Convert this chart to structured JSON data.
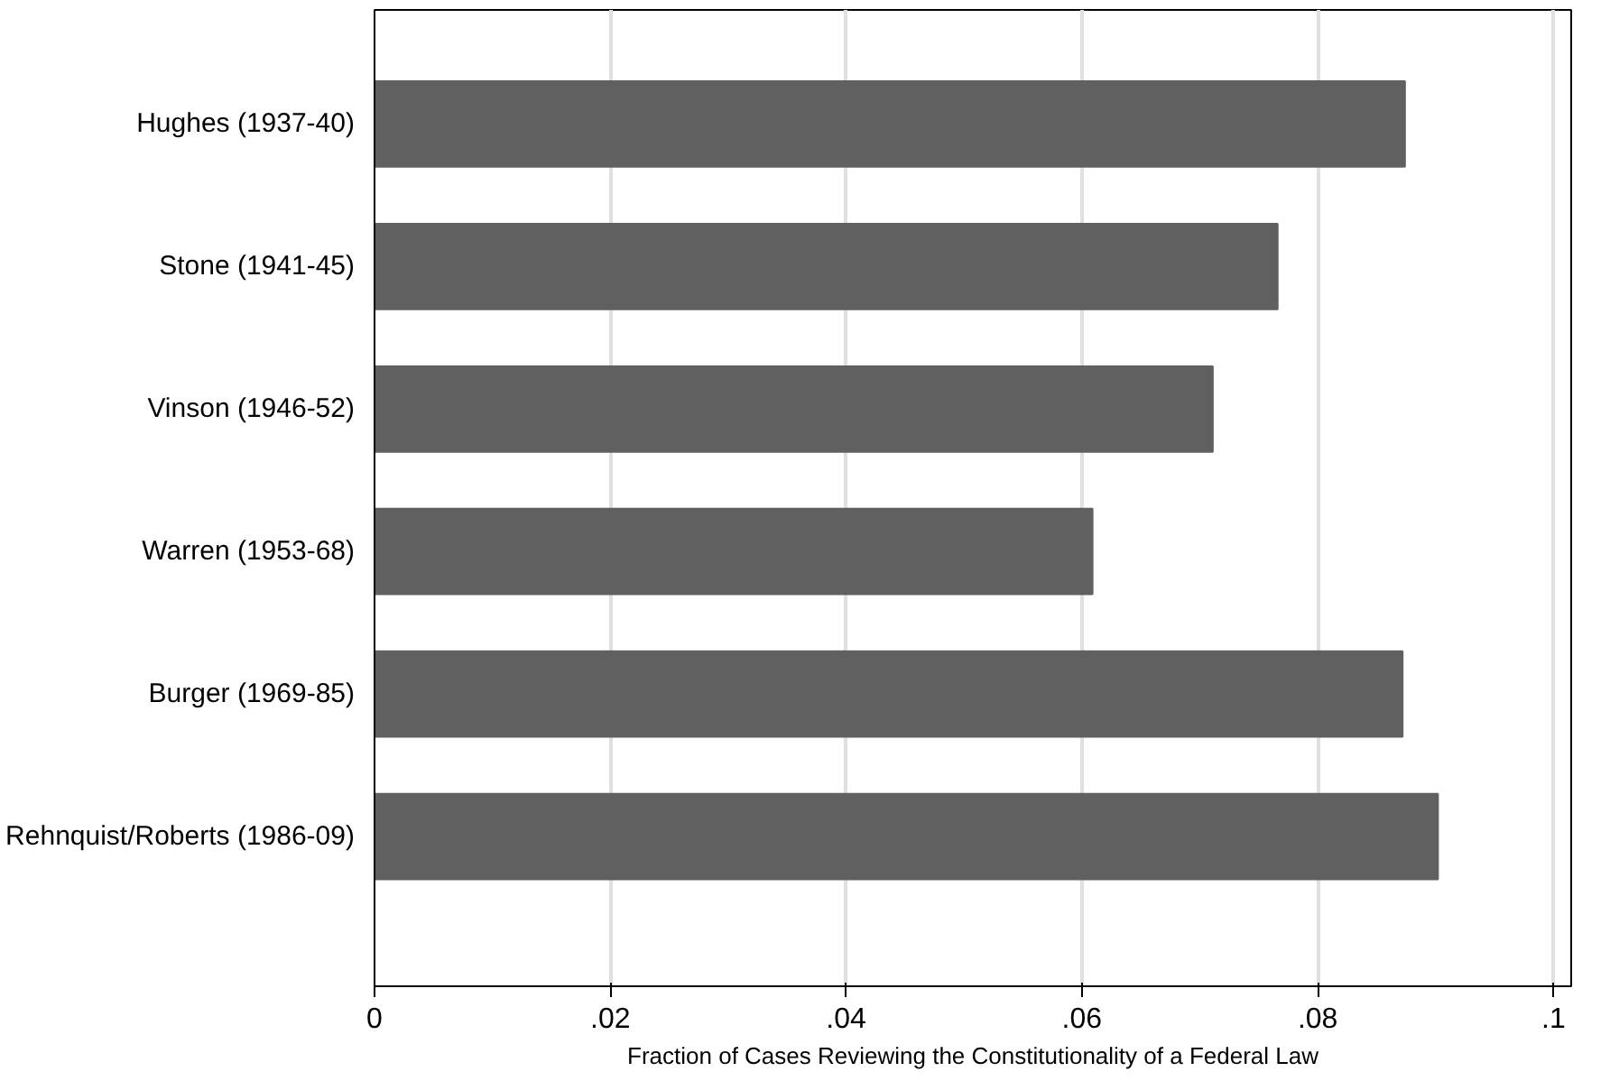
{
  "chart_data": {
    "type": "bar",
    "orientation": "horizontal",
    "xlabel": "Fraction of Cases Reviewing the Constitutionality of a Federal Law",
    "categories": [
      "Hughes (1937-40)",
      "Stone (1941-45)",
      "Vinson (1946-52)",
      "Warren (1953-68)",
      "Burger (1969-85)",
      "Rehnquist/Roberts (1986-09)"
    ],
    "values": [
      0.0874,
      0.0766,
      0.0711,
      0.0609,
      0.0872,
      0.0902
    ],
    "color": "#606060",
    "xlim": [
      0,
      0.1015
    ],
    "xticks": [
      0,
      {
        "value": 0.02,
        "label": ".02"
      },
      {
        "value": 0.04,
        "label": ".04"
      },
      {
        "value": 0.06,
        "label": ".06"
      },
      {
        "value": 0.08,
        "label": ".08"
      },
      {
        "value": 0.1,
        "label": ".1"
      }
    ],
    "grid": "x"
  }
}
